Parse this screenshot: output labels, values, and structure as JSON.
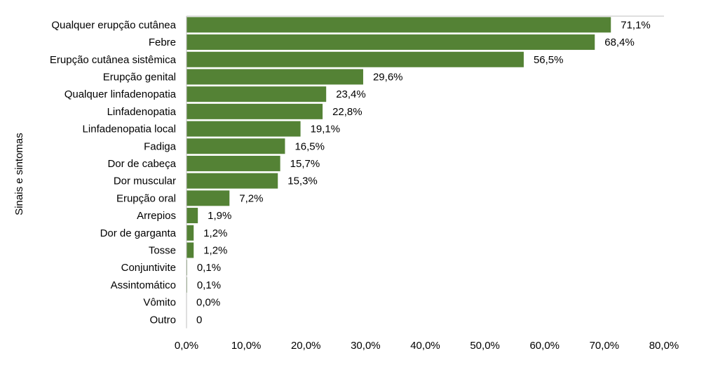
{
  "chart_data": {
    "type": "bar",
    "orientation": "horizontal",
    "ylabel": "Sinais e sintomas",
    "xlabel": "",
    "xlim": [
      0,
      80
    ],
    "grid": false,
    "bar_color": "#548235",
    "categories": [
      "Qualquer erupção cutânea",
      "Febre",
      "Erupção cutânea sistêmica",
      "Erupção genital",
      "Qualquer linfadenopatia",
      "Linfadenopatia",
      "Linfadenopatia local",
      "Fadiga",
      "Dor de cabeça",
      "Dor muscular",
      "Erupção oral",
      "Arrepios",
      "Dor de garganta",
      "Tosse",
      "Conjuntivite",
      "Assintomático",
      "Vômito",
      "Outro"
    ],
    "values": [
      71.1,
      68.4,
      56.5,
      29.6,
      23.4,
      22.8,
      19.1,
      16.5,
      15.7,
      15.3,
      7.2,
      1.9,
      1.2,
      1.2,
      0.1,
      0.1,
      0.0,
      0
    ],
    "data_labels": [
      "71,1%",
      "68,4%",
      "56,5%",
      "29,6%",
      "23,4%",
      "22,8%",
      "19,1%",
      "16,5%",
      "15,7%",
      "15,3%",
      "7,2%",
      "1,9%",
      "1,2%",
      "1,2%",
      "0,1%",
      "0,1%",
      "0,0%",
      "0"
    ],
    "x_ticks": [
      0,
      10,
      20,
      30,
      40,
      50,
      60,
      70,
      80
    ],
    "x_tick_labels": [
      "0,0%",
      "10,0%",
      "20,0%",
      "30,0%",
      "40,0%",
      "50,0%",
      "60,0%",
      "70,0%",
      "80,0%"
    ]
  }
}
